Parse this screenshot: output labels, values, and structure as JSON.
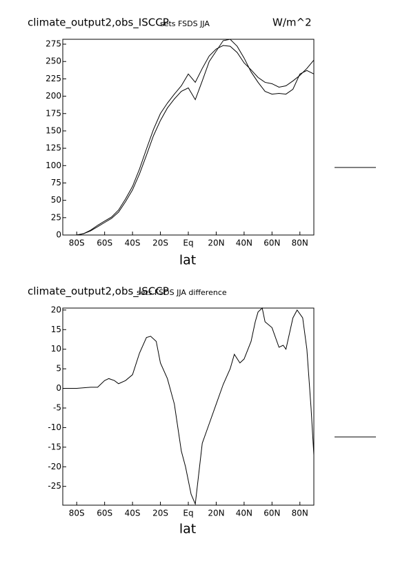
{
  "chart_data": [
    {
      "type": "line",
      "title": "climate_output2,obs_ISCCP",
      "subtitle": "sets FSDS JJA",
      "units": "W/m^2",
      "x_label": "lat",
      "x": [
        -90,
        -85,
        -80,
        -75,
        -70,
        -65,
        -60,
        -55,
        -50,
        -45,
        -40,
        -35,
        -30,
        -25,
        -20,
        -15,
        -10,
        -5,
        0,
        5,
        10,
        15,
        20,
        25,
        30,
        35,
        40,
        45,
        50,
        55,
        60,
        65,
        70,
        75,
        80,
        85,
        90
      ],
      "series": [
        {
          "color": "#000000",
          "values": [
            0,
            0,
            0,
            2,
            6,
            12,
            18,
            24,
            33,
            48,
            65,
            88,
            115,
            143,
            165,
            183,
            196,
            207,
            212,
            195,
            222,
            250,
            265,
            280,
            282,
            272,
            255,
            235,
            220,
            207,
            203,
            204,
            203,
            210,
            232,
            237,
            232
          ]
        },
        {
          "color": "#000000",
          "values": [
            0,
            0,
            0,
            2,
            7,
            14,
            20,
            26,
            36,
            52,
            70,
            95,
            124,
            152,
            175,
            190,
            203,
            215,
            232,
            220,
            240,
            258,
            268,
            273,
            272,
            263,
            248,
            238,
            227,
            220,
            218,
            213,
            215,
            222,
            230,
            240,
            252
          ]
        }
      ],
      "xlim": [
        -90,
        90
      ],
      "ylim": [
        0,
        282
      ],
      "xticks": [
        {
          "value": -80,
          "label": "80S"
        },
        {
          "value": -60,
          "label": "60S"
        },
        {
          "value": -40,
          "label": "40S"
        },
        {
          "value": -20,
          "label": "20S"
        },
        {
          "value": 0,
          "label": "Eq"
        },
        {
          "value": 20,
          "label": "20N"
        },
        {
          "value": 40,
          "label": "40N"
        },
        {
          "value": 60,
          "label": "60N"
        },
        {
          "value": 80,
          "label": "80N"
        }
      ],
      "yticks": [
        0,
        25,
        50,
        75,
        100,
        125,
        150,
        175,
        200,
        225,
        250,
        275
      ]
    },
    {
      "type": "line",
      "title": "climate_output2,obs_ISCCP",
      "subtitle": "sets FSDS JJA difference",
      "x_label": "lat",
      "x": [
        -90,
        -80,
        -70,
        -65,
        -60,
        -57,
        -53,
        -50,
        -45,
        -40,
        -35,
        -30,
        -27,
        -23,
        -20,
        -15,
        -10,
        -5,
        -2,
        2,
        5,
        10,
        15,
        20,
        25,
        30,
        33,
        37,
        40,
        45,
        48,
        50,
        53,
        55,
        60,
        65,
        68,
        70,
        75,
        78,
        82,
        85,
        88,
        90
      ],
      "series": [
        {
          "color": "#000000",
          "values": [
            0,
            0,
            0.3,
            0.3,
            2,
            2.5,
            2,
            1.2,
            2,
            3.5,
            9,
            13,
            13.3,
            12,
            6.5,
            2.5,
            -4,
            -16,
            -20,
            -27,
            -29.5,
            -14,
            -9,
            -4,
            1,
            5,
            8.7,
            6.5,
            7.5,
            12,
            17,
            19.5,
            20.5,
            17,
            15.5,
            10.5,
            11,
            10,
            18,
            20,
            18,
            10,
            -5,
            -17
          ]
        }
      ],
      "xlim": [
        -90,
        90
      ],
      "ylim": [
        -29.8,
        20.5
      ],
      "xticks": [
        {
          "value": -80,
          "label": "80S"
        },
        {
          "value": -60,
          "label": "60S"
        },
        {
          "value": -40,
          "label": "40S"
        },
        {
          "value": -20,
          "label": "20S"
        },
        {
          "value": 0,
          "label": "Eq"
        },
        {
          "value": 20,
          "label": "20N"
        },
        {
          "value": 40,
          "label": "40N"
        },
        {
          "value": 60,
          "label": "60N"
        },
        {
          "value": 80,
          "label": "80N"
        }
      ],
      "yticks": [
        20,
        15,
        10,
        5,
        0,
        -5,
        -10,
        -15,
        -20,
        -25
      ]
    }
  ]
}
